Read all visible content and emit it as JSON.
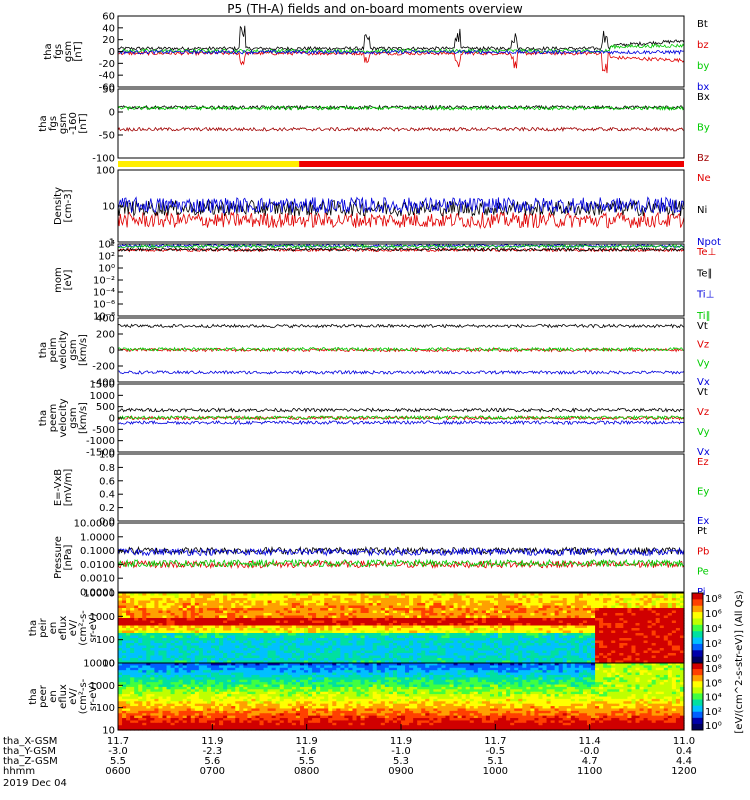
{
  "title": "P5 (TH-A) fields and on-board moments overview",
  "chart_data": [
    {
      "type": "line",
      "panel": "fgs_gsm",
      "ylabel_lines": [
        "tha",
        "fgs",
        "gsm",
        "[nT]"
      ],
      "ylim": [
        -60,
        60
      ],
      "yticks": [
        "60",
        "40",
        "20",
        "0",
        "-20",
        "-40",
        "-60"
      ],
      "series": [
        {
          "name": "Bt",
          "color": "#000000",
          "baseline": 5,
          "spikes": [
            [
              0.22,
              35
            ],
            [
              0.44,
              20
            ],
            [
              0.6,
              30
            ],
            [
              0.7,
              25
            ],
            [
              0.86,
              30
            ]
          ],
          "late": [
            [
              0.87,
              10
            ],
            [
              1.0,
              18
            ]
          ]
        },
        {
          "name": "bz",
          "color": "#e00000",
          "baseline": -3,
          "spikes": [
            [
              0.22,
              -20
            ],
            [
              0.44,
              -15
            ],
            [
              0.6,
              -25
            ],
            [
              0.7,
              -20
            ],
            [
              0.86,
              -30
            ]
          ],
          "late": [
            [
              0.87,
              -10
            ],
            [
              1.0,
              -15
            ]
          ]
        },
        {
          "name": "by",
          "color": "#00cc00",
          "baseline": 1,
          "late": [
            [
              0.87,
              8
            ],
            [
              1.0,
              10
            ]
          ]
        },
        {
          "name": "bx",
          "color": "#0000dd",
          "baseline": -1
        }
      ]
    },
    {
      "type": "line",
      "panel": "fgs_gsm_offset",
      "ylabel_lines": [
        "tha",
        "fgs",
        "gsm",
        "-160",
        "[nT]"
      ],
      "ylim": [
        -130,
        50
      ],
      "yticks": [
        "50",
        "0",
        "-50",
        "-100"
      ],
      "series": [
        {
          "name": "Bx",
          "color": "#000000",
          "baseline": 2
        },
        {
          "name": "By",
          "color": "#00cc00",
          "baseline": 0
        },
        {
          "name": "Bz",
          "color": "#a00000",
          "baseline": -55
        }
      ]
    },
    {
      "type": "line",
      "panel": "density",
      "log_scale": true,
      "ylabel_lines": [
        "Density",
        "[cm-3]"
      ],
      "ylim": [
        1,
        200
      ],
      "yticks": [
        "100",
        "10",
        "1"
      ],
      "series": [
        {
          "name": "Ne",
          "color": "#e00000",
          "baseline": 5
        },
        {
          "name": "Ni",
          "color": "#000000",
          "baseline": 12
        },
        {
          "name": "Npot",
          "color": "#0000dd",
          "baseline": 15
        }
      ]
    },
    {
      "type": "line",
      "panel": "mom_temperature",
      "log_scale": true,
      "ylabel_lines": [
        "mom",
        "[eV]"
      ],
      "ylim": [
        1e-08,
        10000.0
      ],
      "yticks": [
        "10⁴",
        "10²",
        "10⁰",
        "10⁻²",
        "10⁻⁴",
        "10⁻⁶",
        "10⁻⁸"
      ],
      "series": [
        {
          "name": "Te⊥",
          "color": "#e00000",
          "baseline": 1000
        },
        {
          "name": "Te∥",
          "color": "#000000",
          "baseline": 1200
        },
        {
          "name": "Ti⊥",
          "color": "#0000dd",
          "baseline": 5000
        },
        {
          "name": "Ti∥",
          "color": "#00cc00",
          "baseline": 4000
        }
      ]
    },
    {
      "type": "line",
      "panel": "peim_velocity",
      "ylabel_lines": [
        "tha",
        "peim",
        "velocity",
        "gsm",
        "[km/s]"
      ],
      "ylim": [
        -400,
        400
      ],
      "yticks": [
        "400",
        "200",
        "0",
        "-200",
        "-400"
      ],
      "series": [
        {
          "name": "Vt",
          "color": "#000000",
          "baseline": 300
        },
        {
          "name": "Vz",
          "color": "#e00000",
          "baseline": 0
        },
        {
          "name": "Vy",
          "color": "#00cc00",
          "baseline": 10
        },
        {
          "name": "Vx",
          "color": "#0000dd",
          "baseline": -280
        }
      ]
    },
    {
      "type": "line",
      "panel": "peem_velocity",
      "ylabel_lines": [
        "tha",
        "peem",
        "velocity",
        "gsm",
        "[km/s]"
      ],
      "ylim": [
        -1500,
        1500
      ],
      "yticks": [
        "1500",
        "1000",
        "500",
        "0",
        "-500",
        "-1000",
        "-1500"
      ],
      "series": [
        {
          "name": "Vt",
          "color": "#000000",
          "baseline": 350
        },
        {
          "name": "Vz",
          "color": "#e00000",
          "baseline": 0
        },
        {
          "name": "Vy",
          "color": "#00cc00",
          "baseline": 20
        },
        {
          "name": "Vx",
          "color": "#0000dd",
          "baseline": -200
        }
      ]
    },
    {
      "type": "line",
      "panel": "efield",
      "ylabel_lines": [
        "E=-VxB",
        "[mV/m]"
      ],
      "ylim": [
        0,
        1
      ],
      "yticks": [
        "1.0",
        "0.8",
        "0.6",
        "0.4",
        "0.2",
        "0.0"
      ],
      "series": [
        {
          "name": "Ez",
          "color": "#e00000"
        },
        {
          "name": "Ey",
          "color": "#00cc00"
        },
        {
          "name": "Ex",
          "color": "#0000dd"
        }
      ]
    },
    {
      "type": "line",
      "panel": "pressure",
      "log_scale": true,
      "ylabel_lines": [
        "Pressure",
        "[nPa]"
      ],
      "ylim": [
        0.0001,
        10
      ],
      "yticks": [
        "10.0000",
        "1.0000",
        "0.1000",
        "0.0100",
        "0.0010",
        "0.0001"
      ],
      "series": [
        {
          "name": "Pt",
          "color": "#000000",
          "baseline": 0.1
        },
        {
          "name": "Pb",
          "color": "#e00000",
          "baseline": 0.01
        },
        {
          "name": "Pe",
          "color": "#00cc00",
          "baseline": 0.012
        },
        {
          "name": "Pi",
          "color": "#0000dd",
          "baseline": 0.08
        }
      ]
    },
    {
      "type": "heatmap",
      "panel": "peir_eflux",
      "log_scale": true,
      "ylabel_lines": [
        "tha",
        "peir",
        "en",
        "eflux",
        "eV/",
        "(cm²-s-",
        "sr-eV)"
      ],
      "ylim": [
        5,
        20000
      ],
      "yticks": [
        "10000",
        "1000",
        "100",
        "10"
      ]
    },
    {
      "type": "heatmap",
      "panel": "peer_eflux",
      "log_scale": true,
      "ylabel_lines": [
        "tha",
        "peer",
        "en",
        "eflux",
        "eV/",
        "(cm²-s-",
        "sr-eV)"
      ],
      "ylim": [
        5,
        20000
      ],
      "yticks": [
        "10000",
        "1000",
        "100",
        "10"
      ]
    }
  ],
  "colorbar": {
    "label": "[eV/(cm^2-s-str-eV)] (All Qs)",
    "ticks_top": [
      "10⁸",
      "10⁶",
      "10⁴",
      "10²",
      "10⁰"
    ],
    "ticks_bottom": [
      "10⁸",
      "10⁶",
      "10⁴",
      "10²",
      "10⁰"
    ]
  },
  "mode_bar": [
    {
      "from": 0.0,
      "to": 0.32,
      "color": "#ffee00"
    },
    {
      "from": 0.32,
      "to": 1.0,
      "color": "#ee0000"
    }
  ],
  "time_axis": {
    "hhmm": [
      "0600",
      "0700",
      "0800",
      "0900",
      "1000",
      "1100",
      "1200"
    ],
    "date": "2019 Dec 04",
    "rows": [
      {
        "label": "tha_X-GSM",
        "values": [
          "11.7",
          "11.9",
          "11.9",
          "11.9",
          "11.7",
          "11.4",
          "11.0"
        ]
      },
      {
        "label": "tha_Y-GSM",
        "values": [
          "-3.0",
          "-2.3",
          "-1.6",
          "-1.0",
          "-0.5",
          "-0.0",
          "0.4"
        ]
      },
      {
        "label": "tha_Z-GSM",
        "values": [
          "5.5",
          "5.6",
          "5.5",
          "5.3",
          "5.1",
          "4.7",
          "4.4"
        ]
      },
      {
        "label": "hhmm",
        "values": [
          "0600",
          "0700",
          "0800",
          "0900",
          "1000",
          "1100",
          "1200"
        ]
      }
    ]
  }
}
